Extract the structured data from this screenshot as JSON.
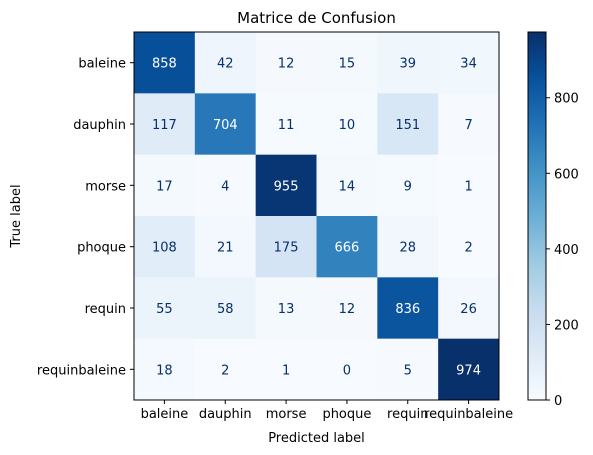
{
  "chart_data": {
    "type": "heatmap",
    "title": "Matrice de Confusion",
    "xlabel": "Predicted label",
    "ylabel": "True label",
    "x_categories": [
      "baleine",
      "dauphin",
      "morse",
      "phoque",
      "requin",
      "requinbaleine"
    ],
    "y_categories": [
      "baleine",
      "dauphin",
      "morse",
      "phoque",
      "requin",
      "requinbaleine"
    ],
    "values": [
      [
        858,
        42,
        12,
        15,
        39,
        34
      ],
      [
        117,
        704,
        11,
        10,
        151,
        7
      ],
      [
        17,
        4,
        955,
        14,
        9,
        1
      ],
      [
        108,
        21,
        175,
        666,
        28,
        2
      ],
      [
        55,
        58,
        13,
        12,
        836,
        26
      ],
      [
        18,
        2,
        1,
        0,
        5,
        974
      ]
    ],
    "colormap": "Blues",
    "vmin": 0,
    "vmax": 974,
    "colorbar_ticks": [
      0,
      200,
      400,
      600,
      800
    ],
    "grid": false
  }
}
